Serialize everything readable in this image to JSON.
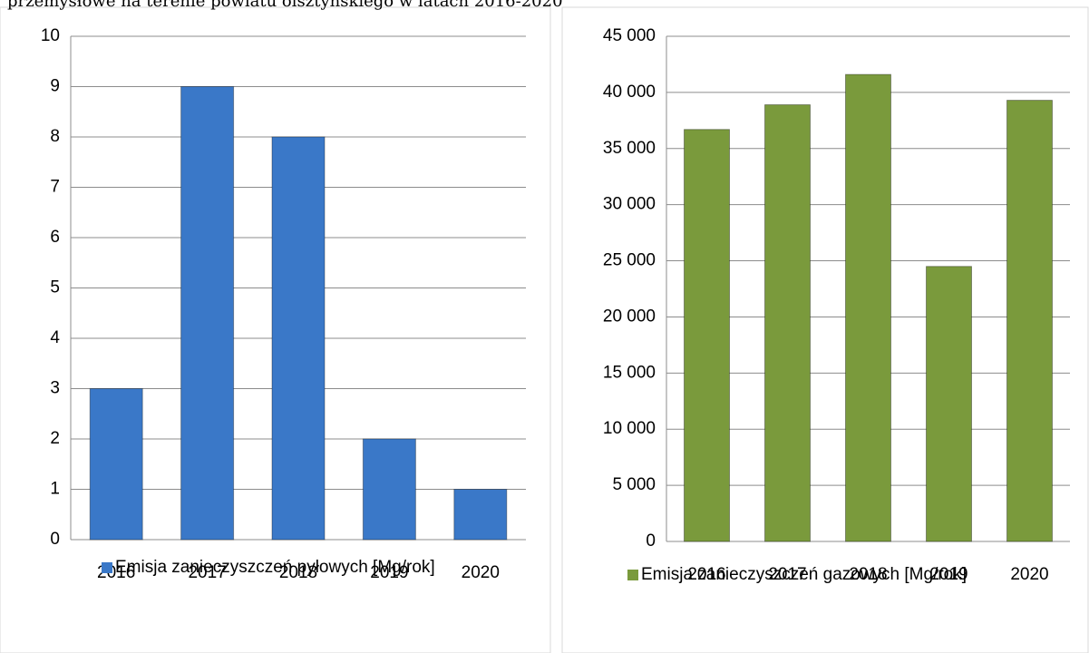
{
  "title": "przemysłowe na terenie powiatu olsztyńskiego w latach 2016-2020",
  "chart_data": [
    {
      "type": "bar",
      "categories": [
        "2016",
        "2017",
        "2018",
        "2019",
        "2020"
      ],
      "series": [
        {
          "name": "Emisja zanieczyszczeń pyłowych [Mg/rok]",
          "color": "#3a78c8",
          "values": [
            3,
            9,
            8,
            2,
            1
          ]
        }
      ],
      "ylim": [
        0,
        10
      ],
      "yticks": [
        0,
        1,
        2,
        3,
        4,
        5,
        6,
        7,
        8,
        9,
        10
      ],
      "grid": true
    },
    {
      "type": "bar",
      "categories": [
        "2016",
        "2017",
        "2018",
        "2019",
        "2020"
      ],
      "series": [
        {
          "name": "Emisja zanieczyszczeń gazowych [Mg/rok]",
          "color": "#7a9a3c",
          "values": [
            36700,
            38900,
            41600,
            24500,
            39300
          ]
        }
      ],
      "ylim": [
        0,
        45000
      ],
      "yticks": [
        0,
        {
          "value": 5000,
          "label": "5 000"
        },
        {
          "value": 10000,
          "label": "10 000"
        },
        {
          "value": 15000,
          "label": "15 000"
        },
        {
          "value": 20000,
          "label": "20 000"
        },
        {
          "value": 25000,
          "label": "25 000"
        },
        {
          "value": 30000,
          "label": "30 000"
        },
        {
          "value": 35000,
          "label": "35 000"
        },
        {
          "value": 40000,
          "label": "40 000"
        },
        {
          "value": 45000,
          "label": "45 000"
        }
      ],
      "grid": true
    }
  ]
}
